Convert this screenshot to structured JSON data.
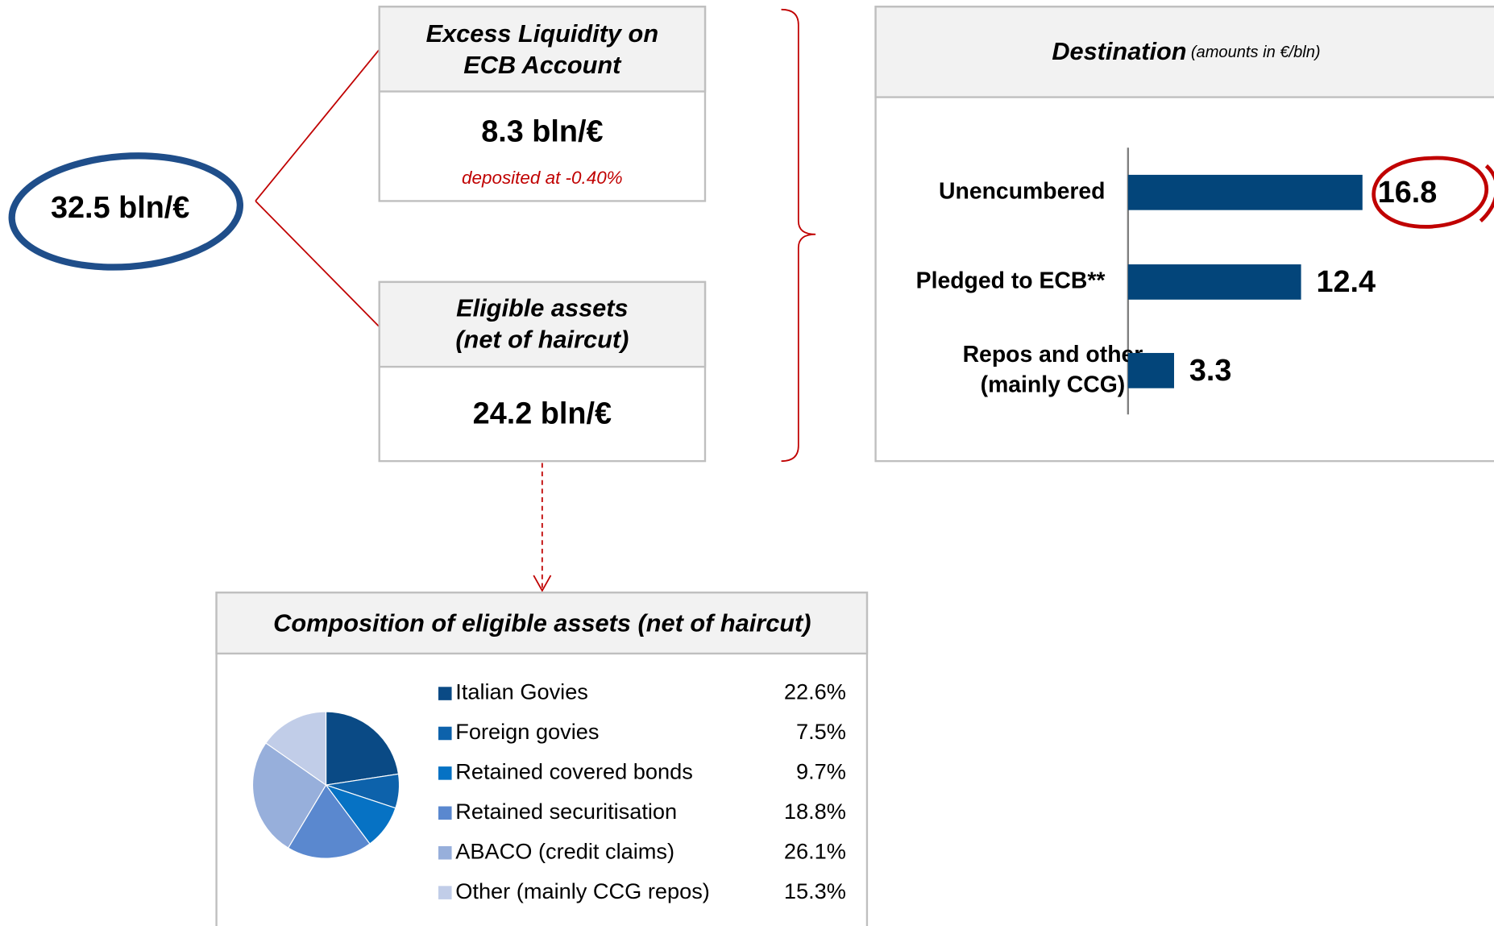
{
  "diagram": {
    "total": "32.5 bln/€",
    "excess": {
      "title": [
        "Excess Liquidity on",
        "ECB Account"
      ],
      "value": "8.3 bln/€",
      "note": "deposited at -0.40%"
    },
    "eligible": {
      "title": [
        "Eligible assets",
        "(net of haircut)"
      ],
      "value": "24.2 bln/€"
    }
  },
  "chart_data": [
    {
      "type": "bar",
      "orientation": "horizontal",
      "title": "Destination",
      "subtitle": "(amounts in €/bln)",
      "categories": [
        "Unencumbered",
        "Pledged to ECB**",
        "Repos and other (mainly CCG)"
      ],
      "values": [
        16.8,
        12.4,
        3.3
      ],
      "color": "#03457a",
      "xlim": [
        0,
        20
      ]
    },
    {
      "type": "pie",
      "title": "Composition of eligible assets (net of haircut)",
      "categories": [
        "Italian Govies",
        "Foreign govies",
        "Retained covered bonds",
        "Retained securitisation",
        "ABACO (credit claims)",
        "Other (mainly CCG repos)"
      ],
      "values": [
        22.6,
        7.5,
        9.7,
        18.8,
        26.1,
        15.3
      ],
      "value_labels": [
        "22.6%",
        "7.5%",
        "9.7%",
        "18.8%",
        "26.1%",
        "15.3%"
      ],
      "colors": [
        "#0a4a85",
        "#0d62ab",
        "#0672c4",
        "#5a88cf",
        "#97afdb",
        "#c1cde8"
      ]
    }
  ]
}
